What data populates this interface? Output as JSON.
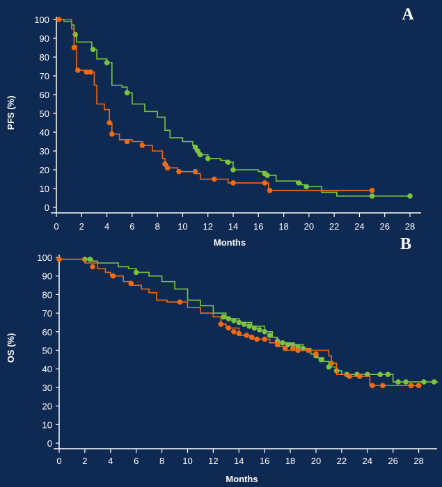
{
  "colors": {
    "background": "#0f2a52",
    "axis": "#ffffff",
    "green": "#7cc43e",
    "orange": "#f26a12"
  },
  "chart_data": [
    {
      "type": "line",
      "panel_label": "A",
      "xlabel": "Months",
      "ylabel": "PFS (%)",
      "xlim": [
        0,
        28
      ],
      "ylim": [
        0,
        100
      ],
      "xticks": [
        0,
        2,
        4,
        6,
        8,
        10,
        12,
        14,
        16,
        18,
        20,
        22,
        24,
        26,
        28
      ],
      "yticks": [
        0,
        10,
        20,
        30,
        40,
        50,
        60,
        70,
        80,
        90,
        100
      ],
      "grid": false,
      "series": [
        {
          "color": "green",
          "step": [
            [
              0,
              100
            ],
            [
              0.6,
              99
            ],
            [
              1.2,
              97
            ],
            [
              1.4,
              92
            ],
            [
              1.6,
              88
            ],
            [
              2.8,
              84
            ],
            [
              3.2,
              79
            ],
            [
              4.0,
              77
            ],
            [
              4.4,
              65
            ],
            [
              5.2,
              64
            ],
            [
              5.6,
              61
            ],
            [
              6.0,
              55
            ],
            [
              7.0,
              51
            ],
            [
              8.0,
              48
            ],
            [
              8.6,
              41
            ],
            [
              9.0,
              37
            ],
            [
              10.0,
              35
            ],
            [
              10.8,
              33
            ],
            [
              11.0,
              30
            ],
            [
              11.2,
              28
            ],
            [
              12.0,
              26
            ],
            [
              13.0,
              25
            ],
            [
              13.4,
              24
            ],
            [
              14.0,
              20
            ],
            [
              16.0,
              19
            ],
            [
              16.6,
              17
            ],
            [
              17.4,
              14
            ],
            [
              19.0,
              13
            ],
            [
              19.4,
              12
            ],
            [
              19.8,
              11
            ],
            [
              21.0,
              8
            ],
            [
              22.2,
              6
            ],
            [
              25.0,
              6
            ],
            [
              28.0,
              6
            ]
          ],
          "censors": [
            [
              1.5,
              92
            ],
            [
              2.9,
              84
            ],
            [
              4.0,
              77
            ],
            [
              5.6,
              61
            ],
            [
              11.0,
              32
            ],
            [
              11.2,
              30
            ],
            [
              11.4,
              28
            ],
            [
              12.0,
              26
            ],
            [
              13.6,
              24
            ],
            [
              14.0,
              20
            ],
            [
              16.5,
              18
            ],
            [
              16.7,
              17
            ],
            [
              19.2,
              13
            ],
            [
              19.8,
              11
            ],
            [
              25.0,
              6
            ],
            [
              28.0,
              6
            ]
          ]
        },
        {
          "color": "orange",
          "step": [
            [
              0,
              100
            ],
            [
              1.2,
              95
            ],
            [
              1.4,
              86
            ],
            [
              1.6,
              73
            ],
            [
              2.2,
              72
            ],
            [
              3.0,
              65
            ],
            [
              3.2,
              55
            ],
            [
              3.8,
              52
            ],
            [
              4.2,
              45
            ],
            [
              4.4,
              39
            ],
            [
              5.0,
              36
            ],
            [
              6.0,
              35
            ],
            [
              6.8,
              33
            ],
            [
              7.6,
              30
            ],
            [
              8.4,
              26
            ],
            [
              8.6,
              23
            ],
            [
              8.8,
              21
            ],
            [
              9.6,
              19
            ],
            [
              11.0,
              18
            ],
            [
              11.4,
              15
            ],
            [
              12.2,
              15
            ],
            [
              13.6,
              13
            ],
            [
              16.6,
              13
            ],
            [
              16.8,
              9
            ],
            [
              25.0,
              9
            ]
          ],
          "censors": [
            [
              0.2,
              100
            ],
            [
              1.4,
              85
            ],
            [
              1.7,
              73
            ],
            [
              2.4,
              72
            ],
            [
              2.7,
              72
            ],
            [
              4.2,
              45
            ],
            [
              4.4,
              39
            ],
            [
              5.6,
              35
            ],
            [
              6.8,
              33
            ],
            [
              8.6,
              23
            ],
            [
              8.8,
              21
            ],
            [
              9.7,
              19
            ],
            [
              11.0,
              19
            ],
            [
              12.5,
              15
            ],
            [
              14.0,
              13
            ],
            [
              16.5,
              13
            ],
            [
              16.9,
              9
            ],
            [
              25.0,
              9
            ]
          ]
        }
      ]
    },
    {
      "type": "line",
      "panel_label": "B",
      "xlabel": "Months",
      "ylabel": "OS (%)",
      "xlim": [
        0,
        29
      ],
      "ylim": [
        0,
        100
      ],
      "xticks": [
        0,
        2,
        4,
        6,
        8,
        10,
        12,
        14,
        16,
        18,
        20,
        22,
        24,
        26,
        28
      ],
      "yticks": [
        0,
        10,
        20,
        30,
        40,
        50,
        60,
        70,
        80,
        90,
        100
      ],
      "grid": false,
      "series": [
        {
          "color": "green",
          "step": [
            [
              0,
              99
            ],
            [
              2.0,
              99
            ],
            [
              2.6,
              98
            ],
            [
              3.0,
              97
            ],
            [
              4.0,
              97
            ],
            [
              4.6,
              95
            ],
            [
              5.4,
              94
            ],
            [
              6.0,
              92
            ],
            [
              7.0,
              90
            ],
            [
              8.0,
              87
            ],
            [
              9.0,
              83
            ],
            [
              10.0,
              77
            ],
            [
              11.0,
              74
            ],
            [
              12.0,
              70
            ],
            [
              13.0,
              67
            ],
            [
              14.0,
              65
            ],
            [
              15.0,
              63
            ],
            [
              16.0,
              60
            ],
            [
              16.6,
              57
            ],
            [
              17.0,
              54
            ],
            [
              18.0,
              53
            ],
            [
              19.0,
              51
            ],
            [
              19.6,
              48
            ],
            [
              20.0,
              46
            ],
            [
              20.6,
              44
            ],
            [
              21.0,
              41
            ],
            [
              21.6,
              39
            ],
            [
              22.0,
              37
            ],
            [
              24.0,
              37
            ],
            [
              25.0,
              37
            ],
            [
              26.0,
              33
            ],
            [
              28.0,
              33
            ],
            [
              29.5,
              33
            ]
          ],
          "censors": [
            [
              2.0,
              99
            ],
            [
              2.4,
              99
            ],
            [
              6.0,
              92
            ],
            [
              12.8,
              68
            ],
            [
              13.2,
              67
            ],
            [
              13.6,
              66
            ],
            [
              14.0,
              65
            ],
            [
              14.4,
              64
            ],
            [
              14.8,
              63
            ],
            [
              15.2,
              62
            ],
            [
              15.6,
              61
            ],
            [
              16.0,
              60
            ],
            [
              16.4,
              58
            ],
            [
              17.0,
              55
            ],
            [
              17.4,
              54
            ],
            [
              17.8,
              53
            ],
            [
              18.2,
              53
            ],
            [
              18.6,
              52
            ],
            [
              19.0,
              51
            ],
            [
              19.4,
              50
            ],
            [
              20.0,
              47
            ],
            [
              20.4,
              45
            ],
            [
              21.0,
              41
            ],
            [
              21.6,
              39
            ],
            [
              22.4,
              37
            ],
            [
              23.2,
              37
            ],
            [
              24.0,
              37
            ],
            [
              25.0,
              37
            ],
            [
              25.6,
              37
            ],
            [
              26.4,
              33
            ],
            [
              27.0,
              33
            ],
            [
              28.4,
              33
            ],
            [
              29.2,
              33
            ]
          ]
        },
        {
          "color": "orange",
          "step": [
            [
              0,
              99
            ],
            [
              2.0,
              97
            ],
            [
              3.0,
              94
            ],
            [
              3.6,
              92
            ],
            [
              4.0,
              90
            ],
            [
              5.0,
              87
            ],
            [
              5.6,
              85
            ],
            [
              6.4,
              83
            ],
            [
              7.0,
              81
            ],
            [
              7.6,
              77
            ],
            [
              8.4,
              76
            ],
            [
              9.0,
              76
            ],
            [
              10.0,
              73
            ],
            [
              11.0,
              70
            ],
            [
              12.0,
              68
            ],
            [
              12.6,
              64
            ],
            [
              13.0,
              62
            ],
            [
              14.0,
              58
            ],
            [
              15.0,
              56
            ],
            [
              16.0,
              56
            ],
            [
              16.4,
              54
            ],
            [
              17.0,
              52
            ],
            [
              17.6,
              50
            ],
            [
              18.0,
              50
            ],
            [
              19.0,
              50
            ],
            [
              20.0,
              50
            ],
            [
              21.0,
              47
            ],
            [
              21.2,
              43
            ],
            [
              21.6,
              37
            ],
            [
              22.4,
              36
            ],
            [
              23.6,
              36
            ],
            [
              24.2,
              31
            ],
            [
              28.0,
              31
            ]
          ],
          "censors": [
            [
              0,
              99
            ],
            [
              2.6,
              95
            ],
            [
              4.2,
              90
            ],
            [
              5.6,
              86
            ],
            [
              9.4,
              76
            ],
            [
              12.6,
              64
            ],
            [
              13.2,
              62
            ],
            [
              13.6,
              60
            ],
            [
              14.0,
              59
            ],
            [
              14.6,
              58
            ],
            [
              15.0,
              57
            ],
            [
              15.4,
              56
            ],
            [
              16.0,
              56
            ],
            [
              17.0,
              53
            ],
            [
              17.6,
              51
            ],
            [
              18.2,
              51
            ],
            [
              18.6,
              50
            ],
            [
              19.4,
              50
            ],
            [
              20.0,
              48
            ],
            [
              21.2,
              43
            ],
            [
              22.6,
              36
            ],
            [
              23.4,
              36
            ],
            [
              24.4,
              31
            ],
            [
              25.2,
              31
            ],
            [
              27.4,
              31
            ],
            [
              28.0,
              31
            ]
          ]
        }
      ]
    }
  ]
}
